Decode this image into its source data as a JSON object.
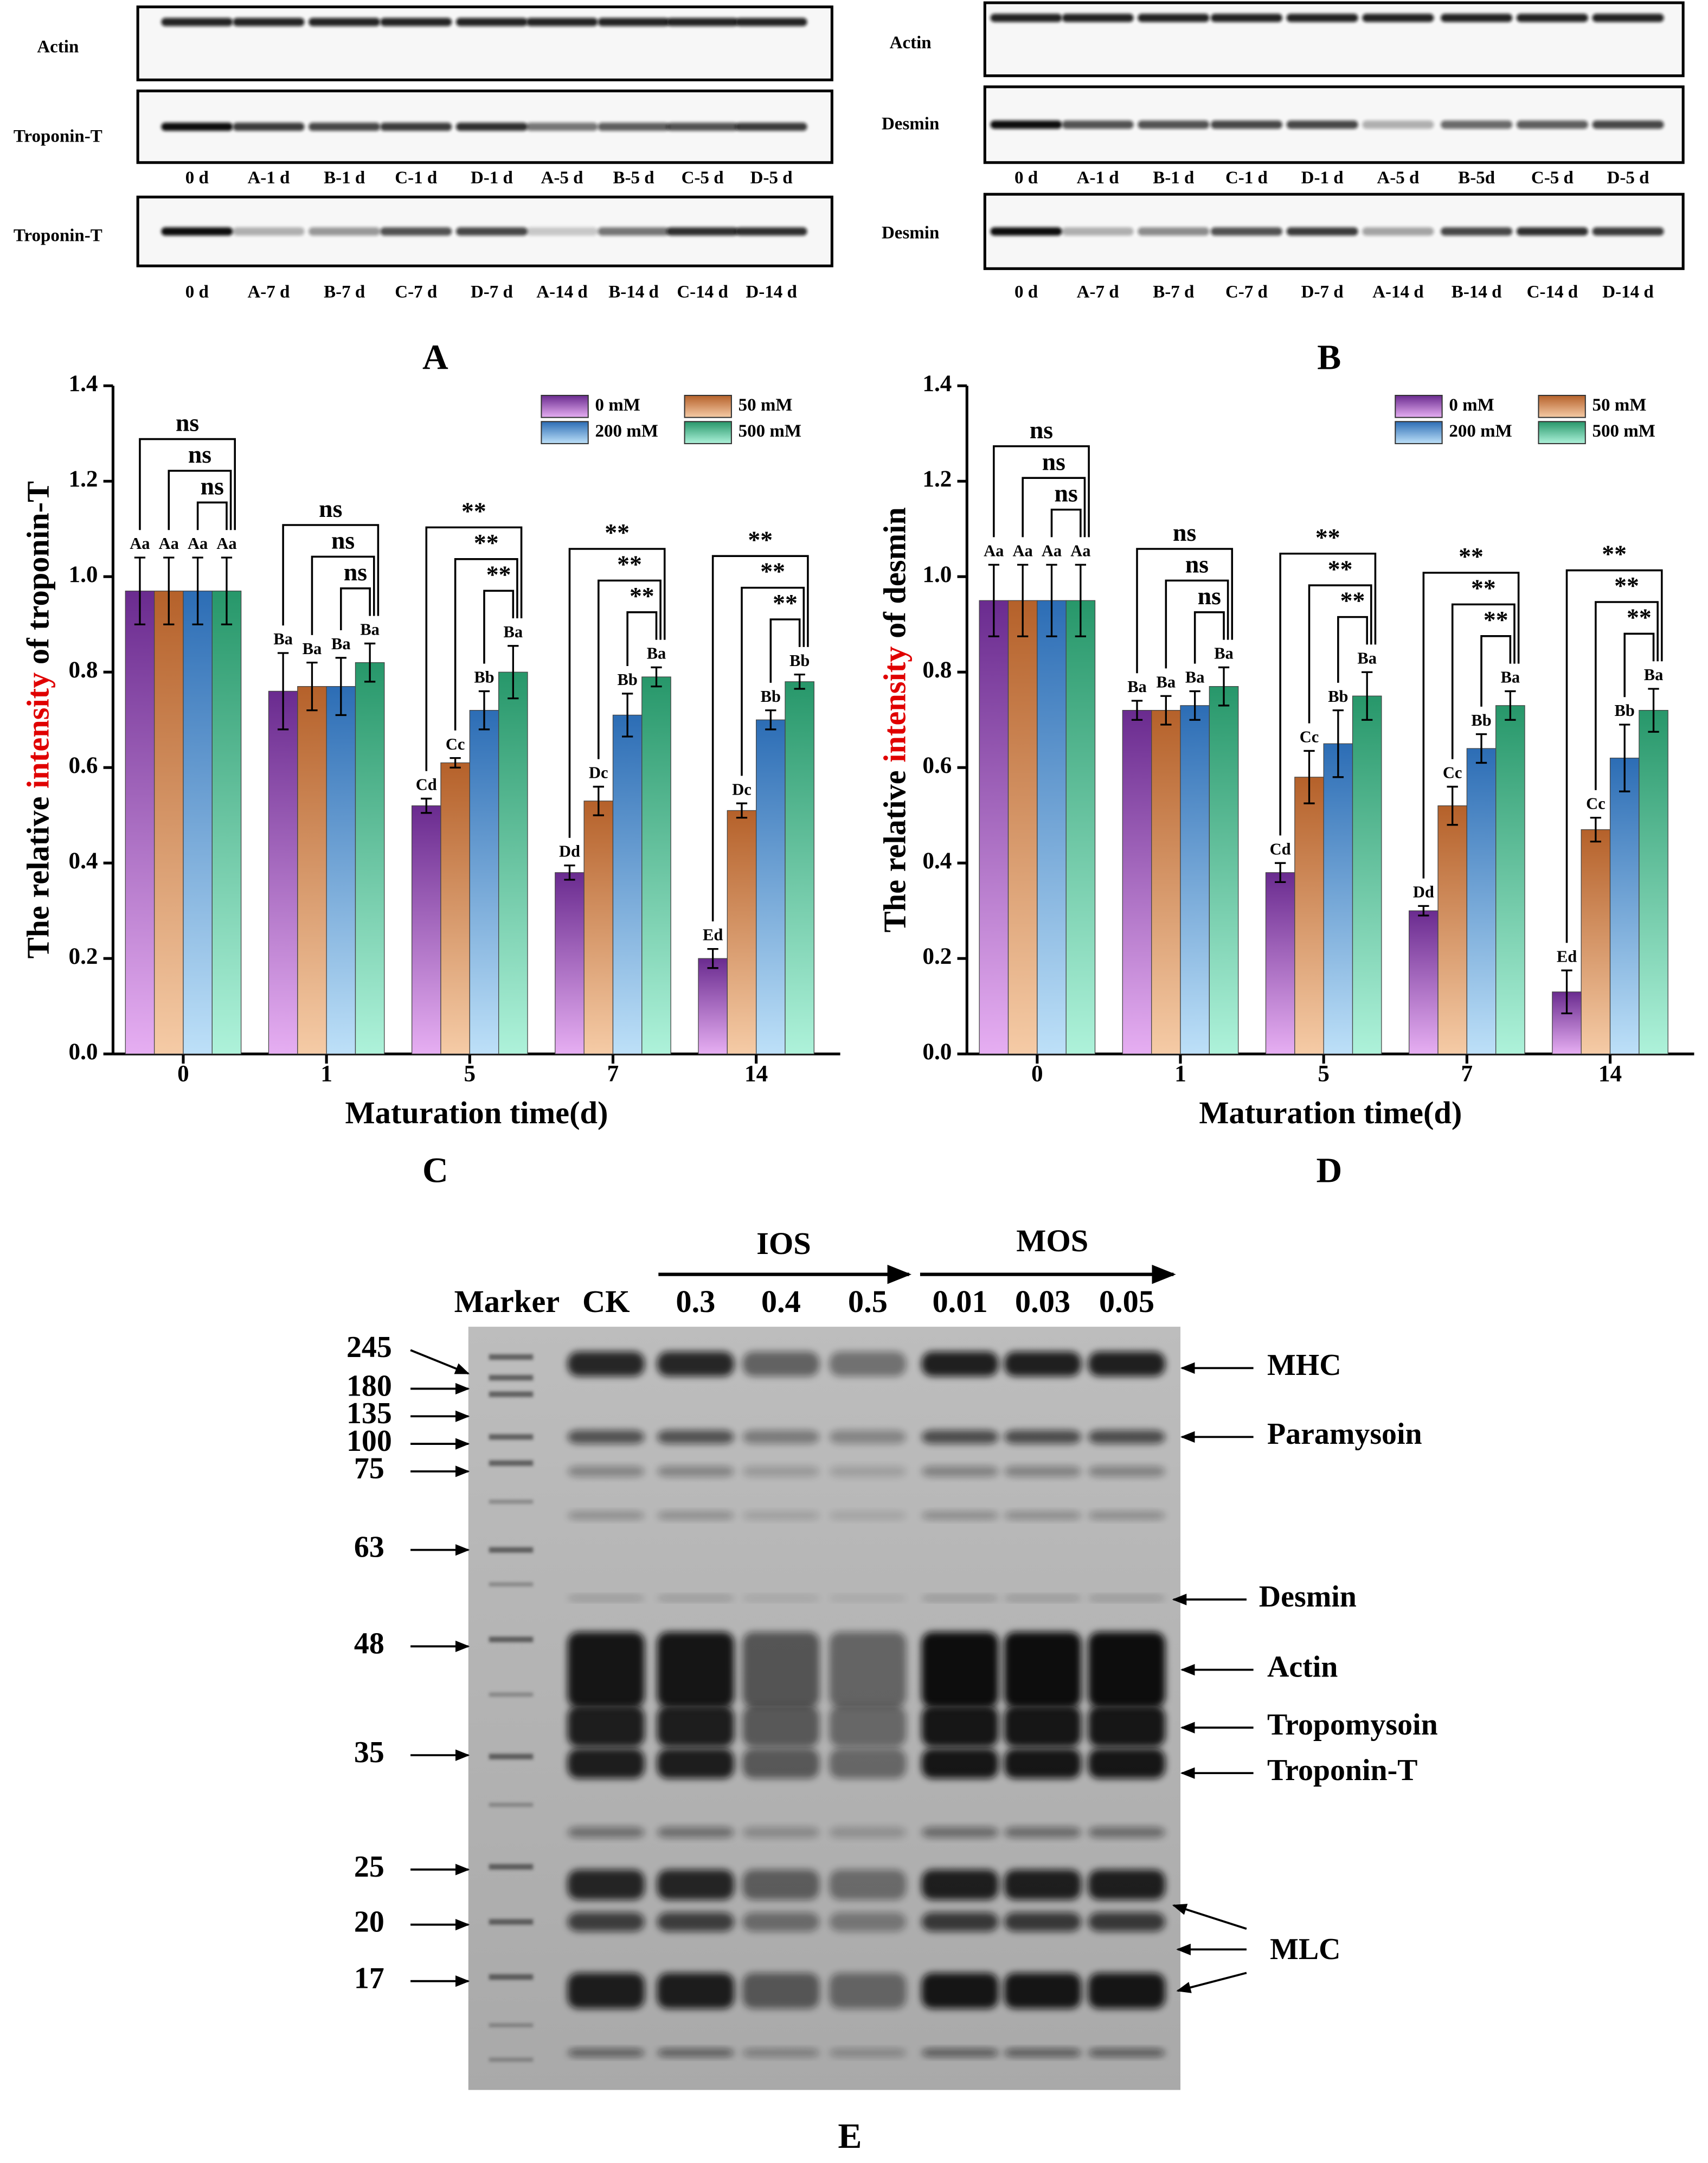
{
  "blots": [
    {
      "panel_label": "A",
      "row_labels": [
        "Actin",
        "Troponin-T",
        "Troponin-T"
      ],
      "lane_labels": [
        [
          "0 d",
          "A-1 d",
          "B-1 d",
          "C-1 d",
          "D-1 d",
          "A-5 d",
          "B-5 d",
          "C-5 d",
          "D-5 d"
        ],
        [
          "0 d",
          "A-7 d",
          "B-7 d",
          "C-7 d",
          "D-7 d",
          "A-14 d",
          "B-14 d",
          "C-14 d",
          "D-14 d"
        ]
      ]
    },
    {
      "panel_label": "B",
      "row_labels": [
        "Actin",
        "Desmin",
        "Desmin"
      ],
      "lane_labels": [
        [
          "0 d",
          "A-1 d",
          "B-1 d",
          "C-1 d",
          "D-1 d",
          "A-5 d",
          "B-5d",
          "C-5 d",
          "D-5 d"
        ],
        [
          "0 d",
          "A-7 d",
          "B-7 d",
          "C-7 d",
          "D-7 d",
          "A-14 d",
          "B-14 d",
          "C-14 d",
          "D-14 d"
        ]
      ]
    }
  ],
  "chart_data": [
    {
      "type": "bar",
      "panel_label": "C",
      "ylabel": [
        "The relative ",
        "intensity",
        " of troponin-T"
      ],
      "ylabel_colors": [
        "#000000",
        "#e00000",
        "#000000"
      ],
      "xlabel": "Maturation time(d)",
      "categories": [
        "0",
        "1",
        "5",
        "7",
        "14"
      ],
      "ylim": [
        0,
        1.4
      ],
      "yticks": [
        {
          "value": 0,
          "label": "0.0"
        },
        0.2,
        0.4,
        0.6,
        0.8,
        {
          "value": 1,
          "label": "1.0"
        },
        1.2,
        1.4
      ],
      "legend": "upper right",
      "series": [
        {
          "name": "0 mM",
          "color": "#6a2b8f",
          "gradient_to": "#e6aef2",
          "values": [
            0.97,
            0.76,
            0.52,
            0.38,
            0.2
          ],
          "errors": [
            0.07,
            0.08,
            0.015,
            0.015,
            0.02
          ],
          "letters": [
            "Aa",
            "Ba",
            "Cd",
            "Dd",
            "Ed"
          ]
        },
        {
          "name": "50 mM",
          "color": "#b5612a",
          "gradient_to": "#f5cba6",
          "values": [
            0.97,
            0.77,
            0.61,
            0.53,
            0.51
          ],
          "errors": [
            0.07,
            0.05,
            0.01,
            0.03,
            0.015
          ],
          "letters": [
            "Aa",
            "Ba",
            "Cc",
            "Dc",
            "Dc"
          ]
        },
        {
          "name": "200 mM",
          "color": "#2c6db5",
          "gradient_to": "#bde0f8",
          "values": [
            0.97,
            0.77,
            0.72,
            0.71,
            0.7
          ],
          "errors": [
            0.07,
            0.06,
            0.04,
            0.045,
            0.02
          ],
          "letters": [
            "Aa",
            "Ba",
            "Bb",
            "Bb",
            "Bb"
          ]
        },
        {
          "name": "500 mM",
          "color": "#27976a",
          "gradient_to": "#aef2da",
          "values": [
            0.97,
            0.82,
            0.8,
            0.79,
            0.78
          ],
          "errors": [
            0.07,
            0.04,
            0.055,
            0.02,
            0.015
          ],
          "letters": [
            "Aa",
            "Ba",
            "Ba",
            "Ba",
            "Bb"
          ]
        }
      ],
      "significance": [
        [
          "ns",
          "ns",
          "ns"
        ],
        [
          "ns",
          "ns",
          "ns"
        ],
        [
          "**",
          "**",
          "**"
        ],
        [
          "**",
          "**",
          "**"
        ],
        [
          "**",
          "**",
          "**"
        ]
      ]
    },
    {
      "type": "bar",
      "panel_label": "D",
      "ylabel": [
        "The relative ",
        "intensity",
        " of desmin"
      ],
      "ylabel_colors": [
        "#000000",
        "#e00000",
        "#000000"
      ],
      "xlabel": "Maturation time(d)",
      "categories": [
        "0",
        "1",
        "5",
        "7",
        "14"
      ],
      "ylim": [
        0,
        1.4
      ],
      "yticks": [
        {
          "value": 0,
          "label": "0.0"
        },
        0.2,
        0.4,
        0.6,
        0.8,
        {
          "value": 1,
          "label": "1.0"
        },
        1.2,
        1.4
      ],
      "legend": "upper right",
      "series": [
        {
          "name": "0 mM",
          "color": "#6a2b8f",
          "gradient_to": "#e6aef2",
          "values": [
            0.95,
            0.72,
            0.38,
            0.3,
            0.13
          ],
          "errors": [
            0.075,
            0.02,
            0.02,
            0.01,
            0.045
          ],
          "letters": [
            "Aa",
            "Ba",
            "Cd",
            "Dd",
            "Ed"
          ]
        },
        {
          "name": "50 mM",
          "color": "#b5612a",
          "gradient_to": "#f5cba6",
          "values": [
            0.95,
            0.72,
            0.58,
            0.52,
            0.47
          ],
          "errors": [
            0.075,
            0.03,
            0.055,
            0.04,
            0.025
          ],
          "letters": [
            "Aa",
            "Ba",
            "Cc",
            "Cc",
            "Cc"
          ]
        },
        {
          "name": "200 mM",
          "color": "#2c6db5",
          "gradient_to": "#bde0f8",
          "values": [
            0.95,
            0.73,
            0.65,
            0.64,
            0.62
          ],
          "errors": [
            0.075,
            0.03,
            0.07,
            0.03,
            0.07
          ],
          "letters": [
            "Aa",
            "Ba",
            "Bb",
            "Bb",
            "Bb"
          ]
        },
        {
          "name": "500 mM",
          "color": "#27976a",
          "gradient_to": "#aef2da",
          "values": [
            0.95,
            0.77,
            0.75,
            0.73,
            0.72
          ],
          "errors": [
            0.075,
            0.04,
            0.05,
            0.03,
            0.045
          ],
          "letters": [
            "Aa",
            "Ba",
            "Ba",
            "Ba",
            "Ba"
          ]
        }
      ],
      "significance": [
        [
          "ns",
          "ns",
          "ns"
        ],
        [
          "ns",
          "ns",
          "ns"
        ],
        [
          "**",
          "**",
          "**"
        ],
        [
          "**",
          "**",
          "**"
        ],
        [
          "**",
          "**",
          "**"
        ]
      ]
    }
  ],
  "gel": {
    "panel_label": "E",
    "lanes": [
      "Marker",
      "CK",
      "0.3",
      "0.4",
      "0.5",
      "0.01",
      "0.03",
      "0.05"
    ],
    "groups": [
      "IOS",
      "MOS"
    ],
    "markers": [
      245,
      180,
      135,
      100,
      75,
      63,
      48,
      35,
      25,
      20,
      17
    ],
    "bands": [
      "MHC",
      "Paramysoin",
      "Desmin",
      "Actin",
      "Tropomysoin",
      "Troponin-T",
      "MLC"
    ]
  }
}
